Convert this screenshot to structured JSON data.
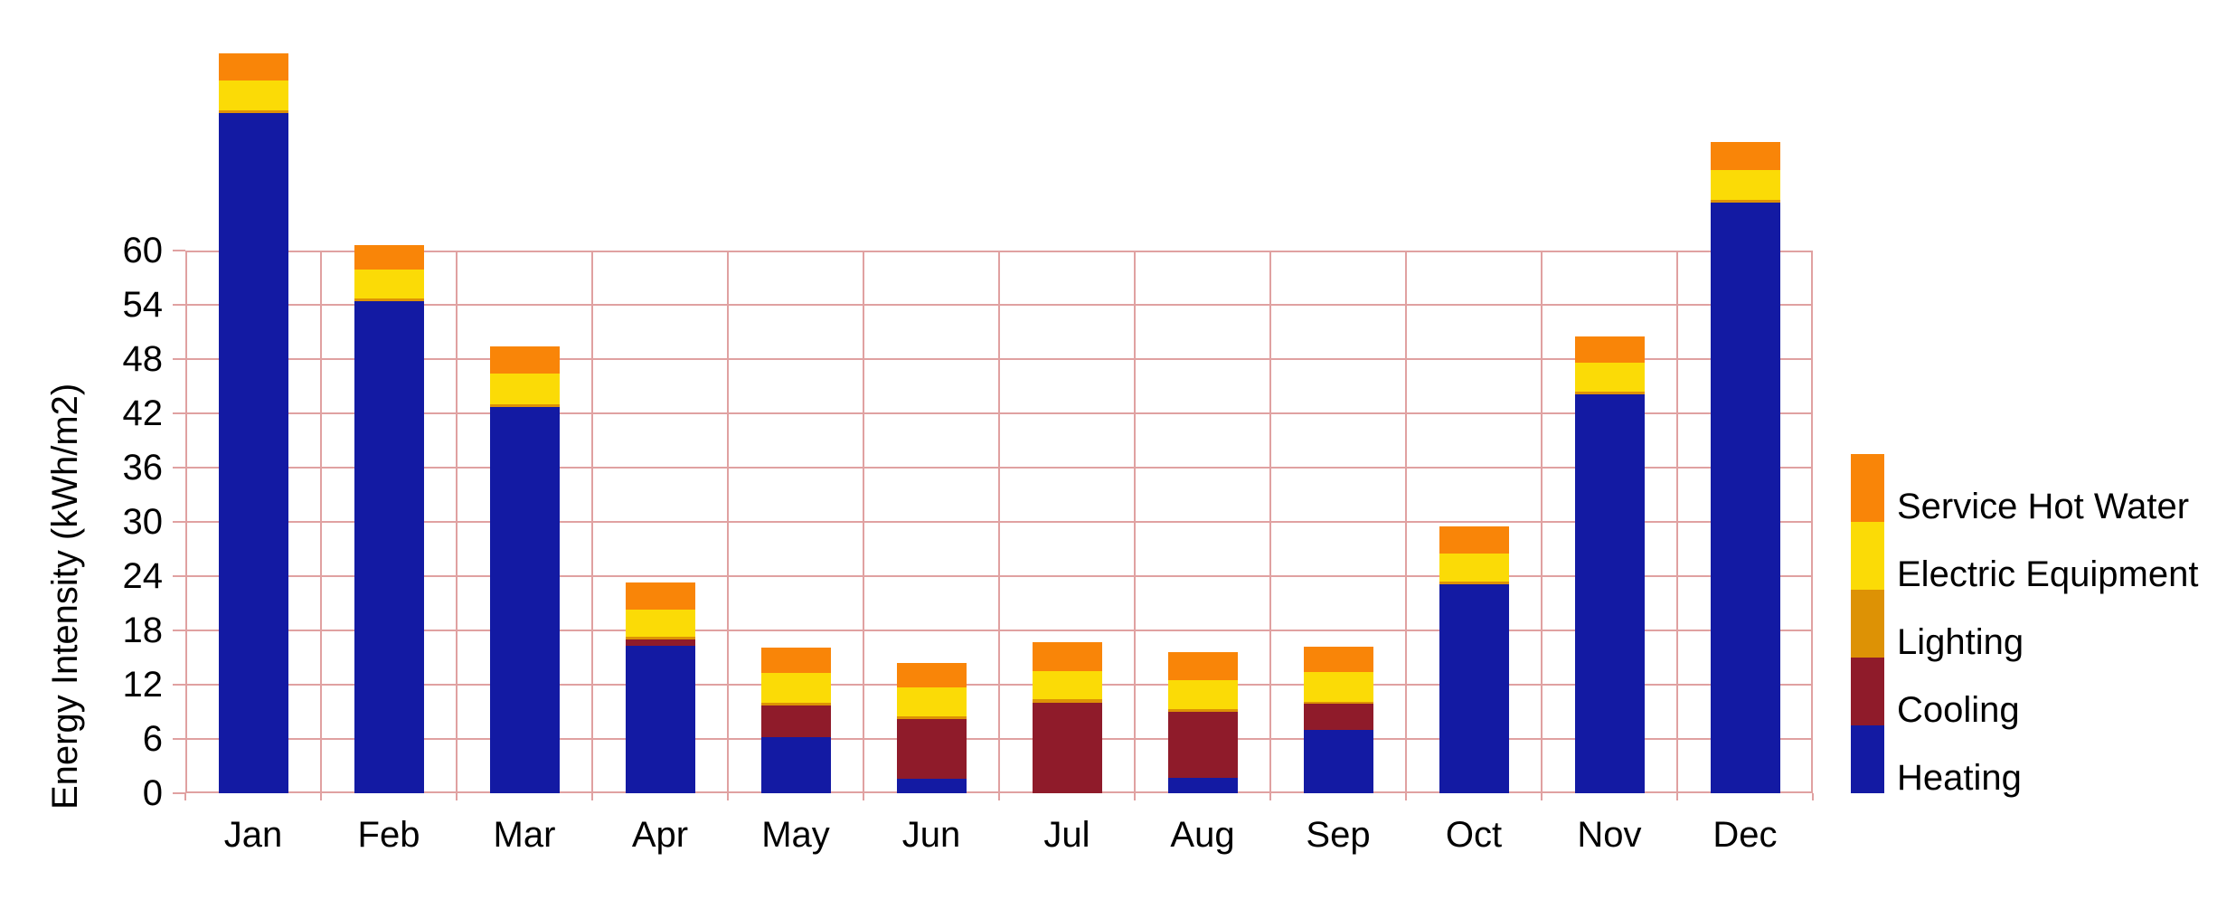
{
  "chart_data": {
    "type": "bar",
    "stacked": true,
    "title": "",
    "ylabel": "Energy Intensity (kWh/m2)",
    "xlabel": "",
    "categories": [
      "Jan",
      "Feb",
      "Mar",
      "Apr",
      "May",
      "Jun",
      "Jul",
      "Aug",
      "Sep",
      "Oct",
      "Nov",
      "Dec"
    ],
    "series": [
      {
        "name": "Heating",
        "color": "#131AA3",
        "values": [
          75.2,
          54.4,
          42.7,
          16.3,
          6.2,
          1.6,
          0,
          1.7,
          7.0,
          23.1,
          44.1,
          65.3
        ]
      },
      {
        "name": "Cooling",
        "color": "#8F1B2A",
        "values": [
          0,
          0,
          0,
          0.7,
          3.5,
          6.6,
          10.0,
          7.3,
          2.9,
          0,
          0,
          0
        ]
      },
      {
        "name": "Lighting",
        "color": "#DD9205",
        "values": [
          0.3,
          0.3,
          0.3,
          0.3,
          0.3,
          0.3,
          0.4,
          0.3,
          0.2,
          0.3,
          0.3,
          0.3
        ]
      },
      {
        "name": "Electric Equipment",
        "color": "#FBDB06",
        "values": [
          3.3,
          3.2,
          3.4,
          3.0,
          3.3,
          3.2,
          3.1,
          3.2,
          3.3,
          3.1,
          3.2,
          3.3
        ]
      },
      {
        "name": "Service Hot Water",
        "color": "#F98508",
        "values": [
          3.0,
          2.7,
          3.0,
          3.0,
          2.8,
          2.7,
          3.2,
          3.1,
          2.8,
          3.0,
          2.9,
          3.1
        ]
      }
    ],
    "stack_order_bottom_to_top": [
      "Heating",
      "Cooling",
      "Lighting",
      "Electric Equipment",
      "Service Hot Water"
    ],
    "legend": {
      "position": "right",
      "order_top_to_bottom": [
        "Service Hot Water",
        "Electric Equipment",
        "Lighting",
        "Cooling",
        "Heating"
      ]
    },
    "y_axis": {
      "min": 0,
      "max": 60,
      "tick_step": 6,
      "tick_labels": [
        "0",
        "6",
        "12",
        "18",
        "24",
        "30",
        "36",
        "42",
        "48",
        "54",
        "60"
      ]
    },
    "x_axis": {
      "tick_labels": [
        "Jan",
        "Feb",
        "Mar",
        "Apr",
        "May",
        "Jun",
        "Jul",
        "Aug",
        "Sep",
        "Oct",
        "Nov",
        "Dec"
      ]
    },
    "grid": {
      "visible": true,
      "color": "#E0A1A1"
    },
    "colors": {
      "background": "#FFFFFF",
      "text": "#000000",
      "gridline": "#E0A1A1"
    }
  }
}
